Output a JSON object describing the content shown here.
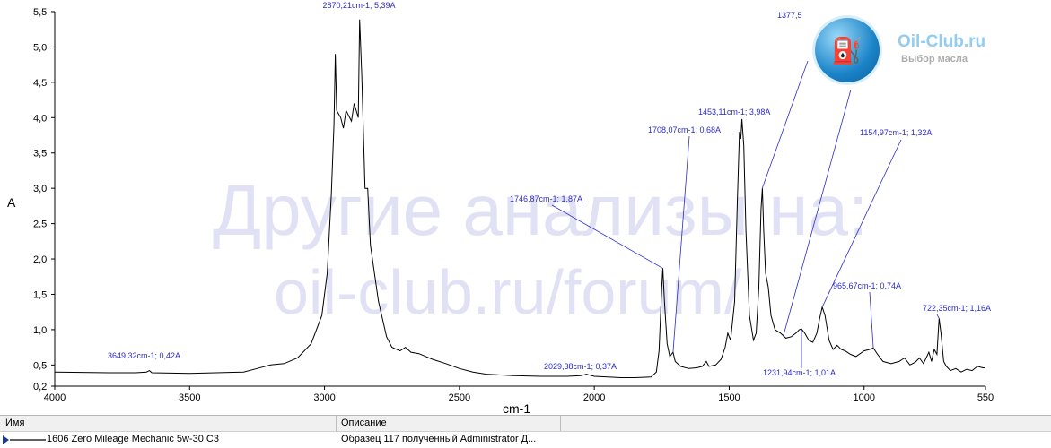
{
  "chart_data": {
    "type": "line",
    "xlabel": "cm-1",
    "ylabel": "A",
    "xlim": [
      4000,
      550
    ],
    "ylim": [
      0.2,
      5.5
    ],
    "x_ticks": [
      "4000",
      "3500",
      "3000",
      "2500",
      "2000",
      "1500",
      "1000",
      "550"
    ],
    "y_ticks": [
      "5,5",
      "5,0",
      "4,5",
      "4,0",
      "3,5",
      "3,0",
      "2,5",
      "2,0",
      "1,5",
      "1,0",
      "0,5",
      "0,2"
    ],
    "series": [
      {
        "name": "1606 Zero Mileage Mechanic 5w-30 C3",
        "color": "#000000",
        "points": [
          [
            4000,
            0.4
          ],
          [
            3800,
            0.39
          ],
          [
            3700,
            0.39
          ],
          [
            3660,
            0.4
          ],
          [
            3649,
            0.42
          ],
          [
            3640,
            0.39
          ],
          [
            3500,
            0.38
          ],
          [
            3300,
            0.4
          ],
          [
            3250,
            0.45
          ],
          [
            3200,
            0.5
          ],
          [
            3150,
            0.52
          ],
          [
            3100,
            0.6
          ],
          [
            3050,
            0.8
          ],
          [
            3010,
            1.2
          ],
          [
            2990,
            1.8
          ],
          [
            2975,
            2.9
          ],
          [
            2965,
            3.9
          ],
          [
            2960,
            4.9
          ],
          [
            2955,
            4.1
          ],
          [
            2940,
            4.0
          ],
          [
            2930,
            3.85
          ],
          [
            2920,
            4.1
          ],
          [
            2900,
            3.95
          ],
          [
            2890,
            4.2
          ],
          [
            2875,
            4.0
          ],
          [
            2870,
            5.39
          ],
          [
            2862,
            4.6
          ],
          [
            2850,
            3.0
          ],
          [
            2840,
            3.0
          ],
          [
            2830,
            2.2
          ],
          [
            2800,
            1.4
          ],
          [
            2770,
            0.9
          ],
          [
            2750,
            0.75
          ],
          [
            2720,
            0.7
          ],
          [
            2700,
            0.75
          ],
          [
            2680,
            0.68
          ],
          [
            2650,
            0.66
          ],
          [
            2600,
            0.58
          ],
          [
            2550,
            0.52
          ],
          [
            2500,
            0.45
          ],
          [
            2450,
            0.4
          ],
          [
            2400,
            0.37
          ],
          [
            2300,
            0.35
          ],
          [
            2200,
            0.34
          ],
          [
            2100,
            0.34
          ],
          [
            2050,
            0.35
          ],
          [
            2029,
            0.37
          ],
          [
            2000,
            0.34
          ],
          [
            1900,
            0.32
          ],
          [
            1850,
            0.32
          ],
          [
            1790,
            0.33
          ],
          [
            1770,
            0.4
          ],
          [
            1760,
            0.7
          ],
          [
            1750,
            1.6
          ],
          [
            1746,
            1.87
          ],
          [
            1740,
            1.4
          ],
          [
            1730,
            0.8
          ],
          [
            1720,
            0.62
          ],
          [
            1708,
            0.68
          ],
          [
            1700,
            0.55
          ],
          [
            1680,
            0.48
          ],
          [
            1650,
            0.45
          ],
          [
            1620,
            0.46
          ],
          [
            1600,
            0.48
          ],
          [
            1585,
            0.55
          ],
          [
            1575,
            0.48
          ],
          [
            1550,
            0.5
          ],
          [
            1530,
            0.58
          ],
          [
            1515,
            0.75
          ],
          [
            1505,
            0.95
          ],
          [
            1495,
            0.85
          ],
          [
            1480,
            1.4
          ],
          [
            1470,
            2.8
          ],
          [
            1462,
            3.8
          ],
          [
            1457,
            3.7
          ],
          [
            1453,
            3.98
          ],
          [
            1446,
            3.6
          ],
          [
            1438,
            2.4
          ],
          [
            1425,
            1.2
          ],
          [
            1410,
            0.85
          ],
          [
            1400,
            0.95
          ],
          [
            1390,
            1.6
          ],
          [
            1382,
            2.7
          ],
          [
            1377,
            3.0
          ],
          [
            1372,
            2.4
          ],
          [
            1365,
            1.8
          ],
          [
            1355,
            1.6
          ],
          [
            1345,
            1.2
          ],
          [
            1330,
            1.0
          ],
          [
            1310,
            0.95
          ],
          [
            1290,
            0.88
          ],
          [
            1270,
            0.9
          ],
          [
            1250,
            0.96
          ],
          [
            1240,
            1.0
          ],
          [
            1232,
            1.01
          ],
          [
            1220,
            0.95
          ],
          [
            1205,
            0.85
          ],
          [
            1190,
            0.82
          ],
          [
            1175,
            0.95
          ],
          [
            1165,
            1.15
          ],
          [
            1155,
            1.32
          ],
          [
            1145,
            1.2
          ],
          [
            1130,
            0.85
          ],
          [
            1115,
            0.72
          ],
          [
            1100,
            0.78
          ],
          [
            1085,
            0.72
          ],
          [
            1070,
            0.7
          ],
          [
            1050,
            0.65
          ],
          [
            1030,
            0.62
          ],
          [
            1000,
            0.7
          ],
          [
            980,
            0.72
          ],
          [
            966,
            0.74
          ],
          [
            950,
            0.65
          ],
          [
            930,
            0.55
          ],
          [
            900,
            0.52
          ],
          [
            870,
            0.55
          ],
          [
            850,
            0.6
          ],
          [
            830,
            0.5
          ],
          [
            810,
            0.54
          ],
          [
            795,
            0.6
          ],
          [
            780,
            0.52
          ],
          [
            770,
            0.6
          ],
          [
            760,
            0.68
          ],
          [
            750,
            0.55
          ],
          [
            740,
            0.72
          ],
          [
            730,
            0.65
          ],
          [
            722,
            1.16
          ],
          [
            715,
            0.95
          ],
          [
            705,
            0.55
          ],
          [
            695,
            0.48
          ],
          [
            680,
            0.42
          ],
          [
            660,
            0.45
          ],
          [
            640,
            0.4
          ],
          [
            620,
            0.44
          ],
          [
            600,
            0.42
          ],
          [
            580,
            0.48
          ],
          [
            560,
            0.46
          ],
          [
            550,
            0.46
          ]
        ]
      }
    ],
    "annotations": [
      {
        "label": "3649,32cm-1; 0,42A",
        "x": 3649.32,
        "y": 0.42
      },
      {
        "label": "2870,21cm-1; 5,39A",
        "x": 2870.21,
        "y": 5.39
      },
      {
        "label": "2029,38cm-1; 0,37A",
        "x": 2029.38,
        "y": 0.37
      },
      {
        "label": "1746,87cm-1; 1,87A",
        "x": 1746.87,
        "y": 1.87
      },
      {
        "label": "1708,07cm-1; 0,68A",
        "x": 1708.07,
        "y": 0.68
      },
      {
        "label": "1453,11cm-1; 3,98A",
        "x": 1453.11,
        "y": 3.98
      },
      {
        "label": "1377,5",
        "x": 1377.5,
        "y": 3.0
      },
      {
        "label": "1231,94cm-1; 1,01A",
        "x": 1231.94,
        "y": 1.01
      },
      {
        "label": "1154,97cm-1; 1,32A",
        "x": 1154.97,
        "y": 1.32
      },
      {
        "label": "965,67cm-1; 0,74A",
        "x": 965.67,
        "y": 0.74
      },
      {
        "label": "722,35cm-1; 1,16A",
        "x": 722.35,
        "y": 1.16
      }
    ]
  },
  "watermark": {
    "line1": "Другие анализы на:",
    "line2": "oil-club.ru/forum/",
    "logo_title": "Oil-Club.ru",
    "logo_subtitle": "Выбор масла"
  },
  "legend_table": {
    "col_name": "Имя",
    "col_desc": "Описание",
    "row_name": "1606 Zero Mileage Mechanic 5w-30 C3",
    "row_desc": "Образец 117 полученный Administrator Д..."
  }
}
